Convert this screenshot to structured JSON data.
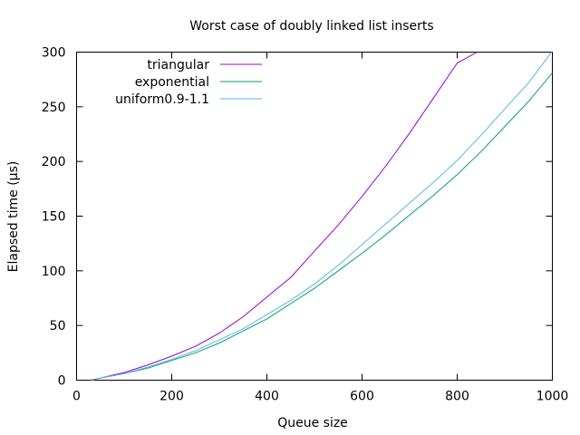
{
  "chart_data": {
    "type": "line",
    "title": "Worst case of doubly linked list inserts",
    "xlabel": "Queue size",
    "ylabel": "Elapsed time (µs)",
    "xlim": [
      0,
      1000
    ],
    "ylim": [
      0,
      300
    ],
    "x_ticks": [
      0,
      200,
      400,
      600,
      800,
      1000
    ],
    "y_ticks": [
      0,
      50,
      100,
      150,
      200,
      250,
      300
    ],
    "grid": false,
    "legend_position": "top-left",
    "series": [
      {
        "name": "triangular",
        "color": "#9400d3",
        "x": [
          30,
          50,
          100,
          150,
          200,
          250,
          300,
          350,
          400,
          450,
          500,
          550,
          600,
          650,
          700,
          750,
          800,
          850
        ],
        "y": [
          0,
          2,
          7,
          14,
          22,
          31,
          43,
          58,
          76,
          94,
          118,
          142,
          168,
          196,
          226,
          258,
          290,
          302
        ]
      },
      {
        "name": "exponential",
        "color": "#009e73",
        "x": [
          30,
          50,
          100,
          150,
          200,
          250,
          300,
          350,
          400,
          450,
          500,
          550,
          600,
          650,
          700,
          750,
          800,
          850,
          900,
          950,
          1000
        ],
        "y": [
          0,
          2,
          6,
          11,
          18,
          25,
          34,
          45,
          56,
          70,
          84,
          100,
          116,
          133,
          151,
          169,
          188,
          209,
          232,
          255,
          281
        ]
      },
      {
        "name": "uniform0.9-1.1",
        "color": "#56b4e9",
        "x": [
          30,
          50,
          100,
          150,
          200,
          250,
          300,
          350,
          400,
          450,
          500,
          550,
          600,
          650,
          700,
          750,
          800,
          850,
          900,
          950,
          1000
        ],
        "y": [
          0,
          2,
          6,
          12,
          19,
          27,
          37,
          47,
          60,
          73,
          88,
          105,
          124,
          143,
          162,
          181,
          201,
          224,
          248,
          272,
          301
        ]
      }
    ]
  }
}
